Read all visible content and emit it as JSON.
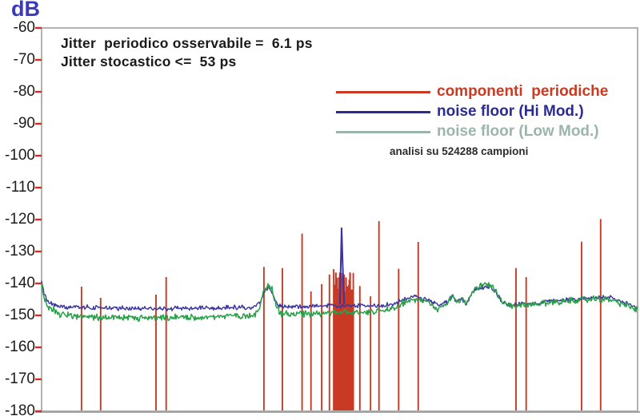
{
  "title": {
    "axis_unit": "dB"
  },
  "annotations": {
    "line1": "Jitter  periodico osservabile =  6.1 ps",
    "line2": "Jitter stocastico <=  53 ps",
    "samples_note": "analisi su 524288 campioni"
  },
  "legend": {
    "items": [
      {
        "label": "componenti  periodiche",
        "color": "#cc3a22"
      },
      {
        "label": "noise floor (Hi Mod.)",
        "color": "#2b2b91"
      },
      {
        "label": "noise floor (Low Mod.)",
        "color": "#9bb5ac"
      }
    ]
  },
  "frame": {
    "color": "#a0a0a0",
    "tick_color": "#c83220",
    "axis_label_color": "#3838c0"
  },
  "chart_data": {
    "type": "line",
    "title": "",
    "xlabel": "",
    "ylabel": "dB",
    "ylim": [
      -180,
      -60
    ],
    "ytick_interval": 10,
    "yticks": [
      "-60",
      "-70",
      "-80",
      "-90",
      "-100",
      "-110",
      "-120",
      "-130",
      "-140",
      "-150",
      "-160",
      "-170",
      "-180"
    ],
    "x_axis_labels_visible": false,
    "x_units": "fraction of displayed frequency span (no x labels shown)",
    "grid": false,
    "legend_position": "upper right inside plot",
    "series": [
      {
        "name": "componenti periodiche",
        "type": "vlines",
        "color": "#c83a24",
        "base_db": -180,
        "points": [
          [
            0.067,
            -141.0
          ],
          [
            0.099,
            -144.5
          ],
          [
            0.192,
            -143.5
          ],
          [
            0.209,
            -138.0
          ],
          [
            0.373,
            -134.8
          ],
          [
            0.404,
            -135.2
          ],
          [
            0.437,
            -124.4
          ],
          [
            0.452,
            -142.5
          ],
          [
            0.47,
            -140.2
          ],
          [
            0.483,
            -137.2
          ],
          [
            0.49,
            -135.5
          ],
          [
            0.523,
            -136.7
          ],
          [
            0.534,
            -140.8
          ],
          [
            0.552,
            -144.0
          ],
          [
            0.566,
            -120.5
          ],
          [
            0.599,
            -135.4
          ],
          [
            0.632,
            -127.0
          ],
          [
            0.796,
            -135.2
          ],
          [
            0.813,
            -138.0
          ],
          [
            0.906,
            -126.9
          ],
          [
            0.938,
            -119.8
          ]
        ],
        "cluster": {
          "x_start_frac": 0.4926,
          "x_end_frac": 0.5221,
          "spike_count": 27,
          "top_db_min": -144.0,
          "top_db_max": -136.5
        }
      },
      {
        "name": "noise floor (Hi Mod.)",
        "type": "line",
        "color": "#3a35a2",
        "noise_db": 0.5,
        "width": 1.4,
        "spike": {
          "x_frac": 0.5034,
          "top_db": -122.5,
          "shoulder_db": -133.0
        },
        "control_points": [
          [
            0.0,
            -139.5
          ],
          [
            0.004,
            -143.5
          ],
          [
            0.012,
            -146.0
          ],
          [
            0.03,
            -147.2
          ],
          [
            0.1,
            -147.6
          ],
          [
            0.2,
            -147.9
          ],
          [
            0.3,
            -147.6
          ],
          [
            0.355,
            -147.4
          ],
          [
            0.366,
            -146.3
          ],
          [
            0.374,
            -142.2
          ],
          [
            0.38,
            -141.6
          ],
          [
            0.386,
            -142.3
          ],
          [
            0.393,
            -145.8
          ],
          [
            0.4,
            -147.2
          ],
          [
            0.45,
            -147.3
          ],
          [
            0.5,
            -146.9
          ],
          [
            0.55,
            -147.1
          ],
          [
            0.585,
            -146.6
          ],
          [
            0.605,
            -145.4
          ],
          [
            0.625,
            -143.9
          ],
          [
            0.648,
            -145.1
          ],
          [
            0.665,
            -146.8
          ],
          [
            0.682,
            -145.6
          ],
          [
            0.69,
            -143.6
          ],
          [
            0.697,
            -145.9
          ],
          [
            0.705,
            -144.6
          ],
          [
            0.712,
            -146.3
          ],
          [
            0.722,
            -143.1
          ],
          [
            0.733,
            -141.6
          ],
          [
            0.742,
            -141.1
          ],
          [
            0.752,
            -140.9
          ],
          [
            0.762,
            -142.6
          ],
          [
            0.772,
            -145.6
          ],
          [
            0.785,
            -146.7
          ],
          [
            0.82,
            -146.3
          ],
          [
            0.86,
            -145.4
          ],
          [
            0.9,
            -144.8
          ],
          [
            0.935,
            -144.4
          ],
          [
            0.955,
            -144.6
          ],
          [
            0.975,
            -145.9
          ],
          [
            1.0,
            -147.7
          ]
        ]
      },
      {
        "name": "noise floor (Low Mod.)",
        "type": "line",
        "color": "#2aa04a",
        "noise_db": 0.75,
        "width": 1.5,
        "control_points": [
          [
            0.0,
            -139.8
          ],
          [
            0.004,
            -144.5
          ],
          [
            0.012,
            -147.5
          ],
          [
            0.03,
            -149.5
          ],
          [
            0.06,
            -150.3
          ],
          [
            0.1,
            -150.7
          ],
          [
            0.2,
            -150.9
          ],
          [
            0.3,
            -150.3
          ],
          [
            0.355,
            -149.9
          ],
          [
            0.366,
            -148.0
          ],
          [
            0.374,
            -141.2
          ],
          [
            0.38,
            -140.5
          ],
          [
            0.386,
            -141.3
          ],
          [
            0.393,
            -147.0
          ],
          [
            0.4,
            -149.4
          ],
          [
            0.45,
            -149.5
          ],
          [
            0.5,
            -149.1
          ],
          [
            0.55,
            -148.9
          ],
          [
            0.585,
            -147.9
          ],
          [
            0.605,
            -146.3
          ],
          [
            0.625,
            -144.9
          ],
          [
            0.648,
            -146.1
          ],
          [
            0.665,
            -148.3
          ],
          [
            0.682,
            -146.1
          ],
          [
            0.69,
            -143.1
          ],
          [
            0.697,
            -146.1
          ],
          [
            0.705,
            -144.1
          ],
          [
            0.712,
            -146.6
          ],
          [
            0.722,
            -142.6
          ],
          [
            0.733,
            -141.1
          ],
          [
            0.742,
            -140.6
          ],
          [
            0.752,
            -140.4
          ],
          [
            0.762,
            -142.1
          ],
          [
            0.772,
            -145.9
          ],
          [
            0.785,
            -147.3
          ],
          [
            0.82,
            -146.7
          ],
          [
            0.86,
            -145.8
          ],
          [
            0.9,
            -145.2
          ],
          [
            0.935,
            -144.8
          ],
          [
            0.955,
            -145.1
          ],
          [
            0.975,
            -146.4
          ],
          [
            1.0,
            -148.3
          ]
        ]
      }
    ]
  }
}
